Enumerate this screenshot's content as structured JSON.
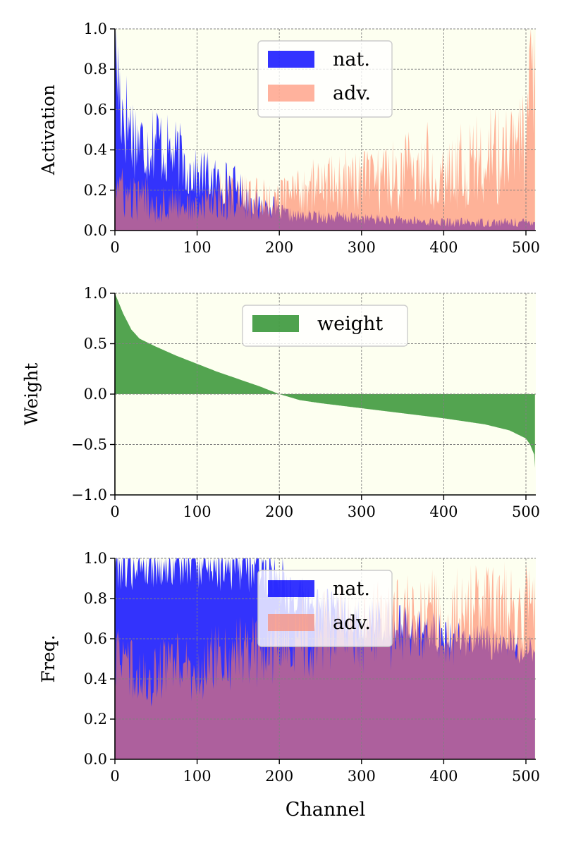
{
  "chart_data": [
    {
      "type": "area",
      "name": "activation",
      "ylabel": "Activation",
      "xlabel": "",
      "xlim": [
        0,
        512
      ],
      "ylim": [
        0,
        1
      ],
      "xticks": [
        0,
        100,
        200,
        300,
        400,
        500
      ],
      "yticks": [
        0.0,
        0.2,
        0.4,
        0.6,
        0.8,
        1.0
      ],
      "ytick_labels": [
        "0.0",
        "0.2",
        "0.4",
        "0.6",
        "0.8",
        "1.0"
      ],
      "grid": true,
      "legend_position": "upper-center",
      "series": [
        {
          "name": "nat.",
          "color": "#0000ff",
          "x": [
            0,
            2,
            5,
            10,
            20,
            30,
            40,
            50,
            60,
            70,
            80,
            90,
            100,
            110,
            120,
            130,
            140,
            150,
            160,
            170,
            180,
            190,
            200,
            220,
            250,
            300,
            350,
            400,
            450,
            500,
            511
          ],
          "values": [
            0.86,
            0.88,
            0.7,
            0.6,
            0.5,
            0.44,
            0.42,
            0.47,
            0.4,
            0.38,
            0.36,
            0.3,
            0.27,
            0.28,
            0.25,
            0.24,
            0.24,
            0.21,
            0.17,
            0.14,
            0.12,
            0.13,
            0.09,
            0.07,
            0.07,
            0.06,
            0.05,
            0.04,
            0.04,
            0.04,
            0.05
          ]
        },
        {
          "name": "adv.",
          "color": "#ff7f5e",
          "x": [
            0,
            10,
            20,
            30,
            40,
            50,
            60,
            80,
            100,
            120,
            140,
            160,
            180,
            200,
            220,
            240,
            260,
            280,
            300,
            320,
            340,
            360,
            380,
            400,
            420,
            440,
            460,
            480,
            500,
            505,
            511
          ],
          "values": [
            0.26,
            0.18,
            0.16,
            0.15,
            0.18,
            0.12,
            0.13,
            0.14,
            0.1,
            0.16,
            0.18,
            0.16,
            0.15,
            0.16,
            0.2,
            0.22,
            0.22,
            0.24,
            0.24,
            0.26,
            0.28,
            0.3,
            0.32,
            0.3,
            0.33,
            0.34,
            0.36,
            0.38,
            0.42,
            0.55,
            0.84
          ]
        }
      ]
    },
    {
      "type": "area",
      "name": "weight",
      "ylabel": "Weight",
      "xlabel": "",
      "xlim": [
        0,
        512
      ],
      "ylim": [
        -1,
        1
      ],
      "xticks": [
        0,
        100,
        200,
        300,
        400,
        500
      ],
      "yticks": [
        -1.0,
        -0.5,
        0.0,
        0.5,
        1.0
      ],
      "ytick_labels": [
        "−1.0",
        "−0.5",
        "0.0",
        "0.5",
        "1.0"
      ],
      "grid": true,
      "legend_position": "upper-center",
      "series": [
        {
          "name": "weight",
          "color": "#228b22",
          "x": [
            0,
            2,
            5,
            10,
            20,
            30,
            50,
            75,
            100,
            125,
            150,
            175,
            200,
            225,
            250,
            300,
            350,
            400,
            450,
            480,
            500,
            505,
            510,
            511
          ],
          "values": [
            1.0,
            0.96,
            0.9,
            0.8,
            0.64,
            0.55,
            0.47,
            0.38,
            0.3,
            0.22,
            0.15,
            0.08,
            0.0,
            -0.06,
            -0.09,
            -0.14,
            -0.19,
            -0.24,
            -0.3,
            -0.36,
            -0.44,
            -0.5,
            -0.6,
            -0.73
          ]
        }
      ]
    },
    {
      "type": "area",
      "name": "frequency",
      "ylabel": "Freq.",
      "xlabel": "Channel",
      "xlim": [
        0,
        512
      ],
      "ylim": [
        0,
        1
      ],
      "xticks": [
        0,
        100,
        200,
        300,
        400,
        500
      ],
      "yticks": [
        0.0,
        0.2,
        0.4,
        0.6,
        0.8,
        1.0
      ],
      "ytick_labels": [
        "0.0",
        "0.2",
        "0.4",
        "0.6",
        "0.8",
        "1.0"
      ],
      "grid": true,
      "legend_position": "upper-center",
      "series": [
        {
          "name": "nat.",
          "color": "#0000ff",
          "x": [
            0,
            50,
            100,
            150,
            170,
            180,
            190,
            200,
            210,
            220,
            240,
            260,
            280,
            300,
            320,
            340,
            360,
            380,
            400,
            450,
            511
          ],
          "values": [
            1.0,
            1.0,
            1.0,
            0.99,
            0.98,
            0.96,
            0.94,
            0.92,
            0.85,
            0.8,
            0.76,
            0.74,
            0.72,
            0.7,
            0.69,
            0.68,
            0.66,
            0.64,
            0.62,
            0.58,
            0.55
          ]
        },
        {
          "name": "adv.",
          "color": "#ff7f5e",
          "x": [
            0,
            20,
            40,
            60,
            80,
            100,
            120,
            140,
            160,
            180,
            200,
            220,
            240,
            260,
            280,
            300,
            320,
            340,
            360,
            380,
            400,
            420,
            440,
            460,
            480,
            500,
            511
          ],
          "values": [
            0.52,
            0.45,
            0.38,
            0.46,
            0.48,
            0.4,
            0.5,
            0.52,
            0.55,
            0.55,
            0.58,
            0.6,
            0.62,
            0.64,
            0.65,
            0.66,
            0.67,
            0.68,
            0.68,
            0.7,
            0.7,
            0.71,
            0.72,
            0.73,
            0.74,
            0.76,
            0.72
          ]
        }
      ]
    }
  ],
  "styles": {
    "panel_background": "#fdfff0",
    "grid_color": "#808080",
    "overlap_color": "#9e4d8f"
  }
}
